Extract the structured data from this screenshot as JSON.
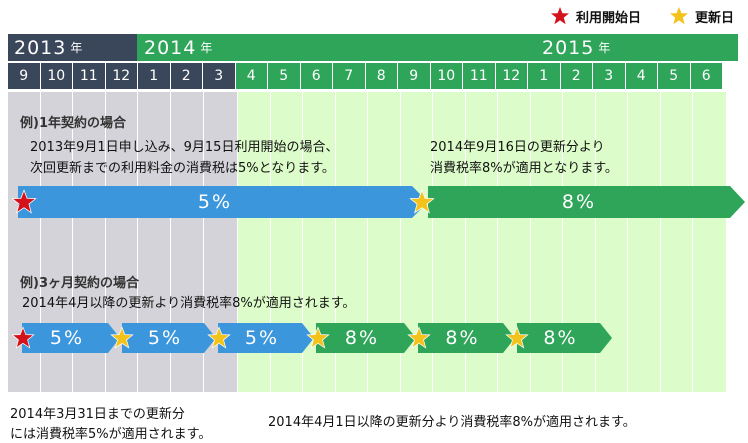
{
  "legend": {
    "start_label": "利用開始日",
    "renew_label": "更新日",
    "start_color": "#d4121b",
    "renew_color": "#f3c21b"
  },
  "years": [
    {
      "year": "2013",
      "suffix": "年"
    },
    {
      "year": "2014",
      "suffix": "年"
    },
    {
      "year": "2015",
      "suffix": "年"
    }
  ],
  "months": [
    "9",
    "10",
    "11",
    "12",
    "1",
    "2",
    "3",
    "4",
    "5",
    "6",
    "7",
    "8",
    "9",
    "10",
    "11",
    "12",
    "1",
    "2",
    "3",
    "4",
    "5",
    "6"
  ],
  "colors": {
    "navy": "#3a4659",
    "green": "#2fa55a",
    "blue": "#3b96dc",
    "gray_bg": "#d3d3d9",
    "green_bg": "#dcfcc9"
  },
  "example1": {
    "title": "例)1年契約の場合",
    "note_left_line1": "2013年9月1日申し込み、9月15日利用開始の場合、",
    "note_left_line2": "次回更新までの利用料金の消費税は5%となります。",
    "note_right_line1": "2014年9月16日の更新分より",
    "note_right_line2": "消費税率8%が適用となります。",
    "bar1_label": "5%",
    "bar2_label": "8%"
  },
  "example2": {
    "title": "例)3ヶ月契約の場合",
    "note": "2014年4月以降の更新より消費税率8%が適用されます。",
    "bars": [
      "5%",
      "5%",
      "5%",
      "8%",
      "8%",
      "8%"
    ]
  },
  "footer": {
    "left_line1": "2014年3月31日までの更新分",
    "left_line2": "には消費税率5%が適用されます。",
    "right": "2014年4月1日以降の更新分より消費税率8%が適用されます。"
  }
}
